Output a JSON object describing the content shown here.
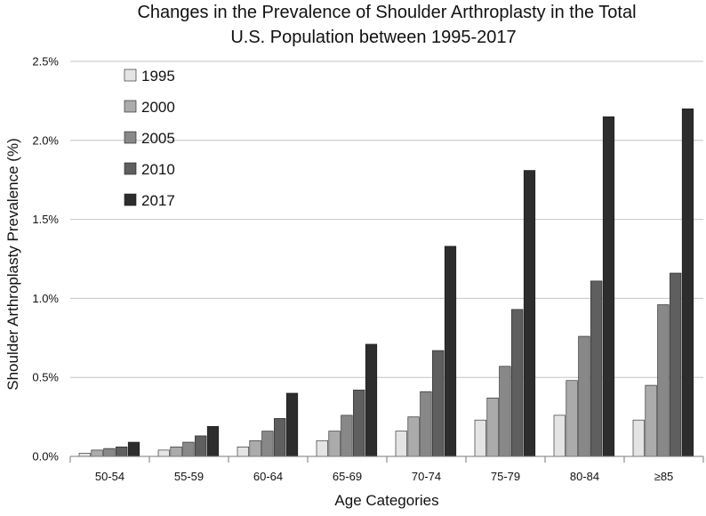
{
  "chart_data": {
    "type": "bar",
    "title_lines": [
      "Changes in the Prevalence of Shoulder Arthroplasty in the Total",
      "U.S. Population between 1995-2017"
    ],
    "xlabel": "Age Categories",
    "ylabel": "Shoulder Arthroplasty Prevalence (%)",
    "ylim": [
      0,
      2.5
    ],
    "yticks": [
      0,
      0.5,
      1.0,
      1.5,
      2.0,
      2.5
    ],
    "ytick_labels": [
      "0.0%",
      "0.5%",
      "1.0%",
      "1.5%",
      "2.0%",
      "2.5%"
    ],
    "grid": true,
    "legend_position": "top-left",
    "categories": [
      "50-54",
      "55-59",
      "60-64",
      "65-69",
      "70-74",
      "75-79",
      "80-84",
      "≥85"
    ],
    "series": [
      {
        "name": "1995",
        "color": "#e4e4e4",
        "values": [
          0.02,
          0.04,
          0.06,
          0.1,
          0.16,
          0.23,
          0.26,
          0.23
        ]
      },
      {
        "name": "2000",
        "color": "#ababab",
        "values": [
          0.04,
          0.06,
          0.1,
          0.16,
          0.25,
          0.37,
          0.48,
          0.45
        ]
      },
      {
        "name": "2005",
        "color": "#888888",
        "values": [
          0.05,
          0.09,
          0.16,
          0.26,
          0.41,
          0.57,
          0.76,
          0.96
        ]
      },
      {
        "name": "2010",
        "color": "#5f5f5f",
        "values": [
          0.06,
          0.13,
          0.24,
          0.42,
          0.67,
          0.93,
          1.11,
          1.16
        ]
      },
      {
        "name": "2017",
        "color": "#2d2d2d",
        "values": [
          0.09,
          0.19,
          0.4,
          0.71,
          1.33,
          1.81,
          2.15,
          2.2
        ]
      }
    ]
  }
}
